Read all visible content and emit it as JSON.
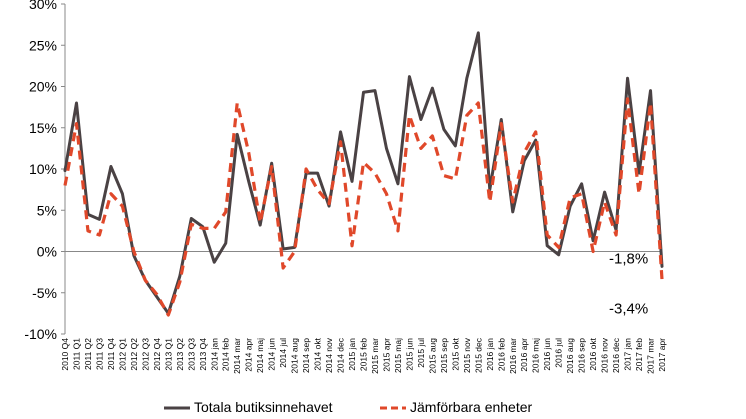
{
  "chart_data": {
    "type": "line",
    "title": "",
    "xlabel": "",
    "ylabel": "",
    "ylim": [
      -10,
      30
    ],
    "yticks": [
      "-10%",
      "-5%",
      "0%",
      "5%",
      "10%",
      "15%",
      "20%",
      "25%",
      "30%"
    ],
    "grid": false,
    "legend_position": "bottom",
    "x": [
      "2010 Q4",
      "2011 Q1",
      "2011 Q2",
      "2011 Q3",
      "2011 Q4",
      "2012 Q1",
      "2012 Q2",
      "2012 Q3",
      "2012 Q4",
      "2013 Q1",
      "2013 Q2",
      "2013 Q3",
      "2013 Q4",
      "2014 jan",
      "2014 feb",
      "2014 mar",
      "2014 apr",
      "2014 maj",
      "2014 jun",
      "2014 jul",
      "2014 aug",
      "2014 sep",
      "2014 okt",
      "2014 nov",
      "2014 dec",
      "2015 jan",
      "2015 feb",
      "2015 mar",
      "2015 apr",
      "2015 maj",
      "2015 jun",
      "2015 jul",
      "2015 aug",
      "2015 sep",
      "2015 okt",
      "2015 nov",
      "2015 dec",
      "2016 jan",
      "2016 feb",
      "2016 mar",
      "2016 apr",
      "2016 maj",
      "2016 jun",
      "2016 jul",
      "2016 aug",
      "2016 sep",
      "2016 okt",
      "2016 nov",
      "2016 dec",
      "2017 jan",
      "2017 feb",
      "2017 mar",
      "2017 apr"
    ],
    "series": [
      {
        "name": "Totala butiksinnehavet",
        "color": "#4a4244",
        "style": "solid",
        "values": [
          9.8,
          18.0,
          4.5,
          3.9,
          10.3,
          7.0,
          -0.5,
          -3.5,
          -5.5,
          -7.5,
          -3.0,
          4.0,
          3.0,
          -1.3,
          1.0,
          14.2,
          8.5,
          3.2,
          10.7,
          0.3,
          0.5,
          9.5,
          9.5,
          5.5,
          14.5,
          8.5,
          19.3,
          19.5,
          12.5,
          8.2,
          21.2,
          16.0,
          19.8,
          14.8,
          12.8,
          21.0,
          26.5,
          7.5,
          16.0,
          4.8,
          11.0,
          13.5,
          0.7,
          -0.4,
          5.5,
          8.2,
          1.3,
          7.2,
          2.6,
          21.0,
          9.5,
          19.5,
          -1.8
        ]
      },
      {
        "name": "Jämförbara enheter",
        "color": "#e0482a",
        "style": "dashed",
        "values": [
          8.0,
          15.5,
          2.5,
          2.0,
          7.0,
          5.5,
          0.0,
          -3.5,
          -5.2,
          -7.7,
          -3.7,
          3.3,
          2.8,
          2.8,
          4.8,
          18.0,
          12.0,
          3.5,
          10.3,
          -2.0,
          0.0,
          10.0,
          7.5,
          5.8,
          13.3,
          0.7,
          10.8,
          9.5,
          7.0,
          2.5,
          16.5,
          12.5,
          14.0,
          9.2,
          8.8,
          16.5,
          18.0,
          6.0,
          15.5,
          6.0,
          12.0,
          14.5,
          2.0,
          0.5,
          6.5,
          7.0,
          0.0,
          6.0,
          2.0,
          18.5,
          7.0,
          18.0,
          -3.4
        ]
      }
    ],
    "annotations": [
      {
        "text": "-1,8%",
        "series": 0,
        "index": 52
      },
      {
        "text": "-3,4%",
        "series": 1,
        "index": 52
      }
    ]
  }
}
